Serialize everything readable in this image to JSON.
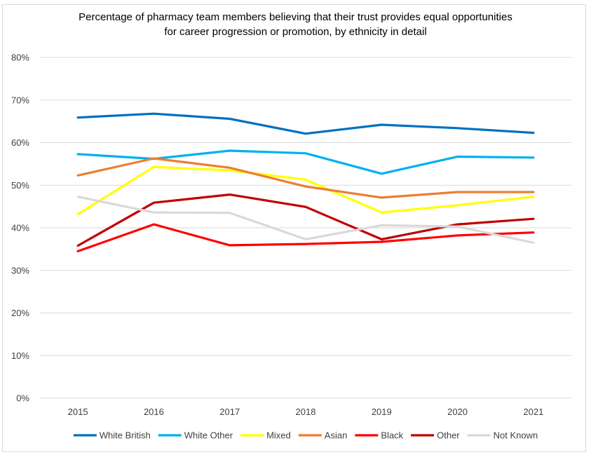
{
  "chart_data": {
    "type": "line",
    "title_lines": [
      "Percentage of pharmacy team members believing that their trust provides equal opportunities",
      "for career progression or promotion, by ethnicity in detail"
    ],
    "categories": [
      "2015",
      "2016",
      "2017",
      "2018",
      "2019",
      "2020",
      "2021"
    ],
    "y_ticks": [
      "0%",
      "10%",
      "20%",
      "30%",
      "40%",
      "50%",
      "60%",
      "70%",
      "80%"
    ],
    "ylim": [
      0,
      80
    ],
    "y_unit": "%",
    "grid": "horizontal",
    "legend_position": "bottom",
    "series": [
      {
        "name": "White British",
        "color": "#0070c0",
        "values": [
          65.9,
          66.8,
          65.6,
          62.1,
          64.2,
          63.4,
          62.3
        ]
      },
      {
        "name": "White Other",
        "color": "#00b0f0",
        "values": [
          57.3,
          56.2,
          58.1,
          57.5,
          52.7,
          56.7,
          56.5
        ]
      },
      {
        "name": "Mixed",
        "color": "#ffff00",
        "values": [
          43.2,
          54.3,
          53.5,
          51.3,
          43.6,
          45.3,
          47.3
        ]
      },
      {
        "name": "Asian",
        "color": "#ed7d31",
        "values": [
          52.3,
          56.3,
          54.1,
          49.7,
          47.1,
          48.4,
          48.4
        ]
      },
      {
        "name": "Black",
        "color": "#ff0000",
        "values": [
          34.5,
          40.8,
          35.9,
          36.2,
          36.7,
          38.2,
          38.9
        ]
      },
      {
        "name": "Other",
        "color": "#c00000",
        "values": [
          35.8,
          45.9,
          47.8,
          44.9,
          37.3,
          40.8,
          42.1
        ]
      },
      {
        "name": "Not Known",
        "color": "#d9d9d9",
        "values": [
          47.3,
          43.6,
          43.5,
          37.3,
          40.6,
          40.3,
          36.5
        ]
      }
    ]
  }
}
